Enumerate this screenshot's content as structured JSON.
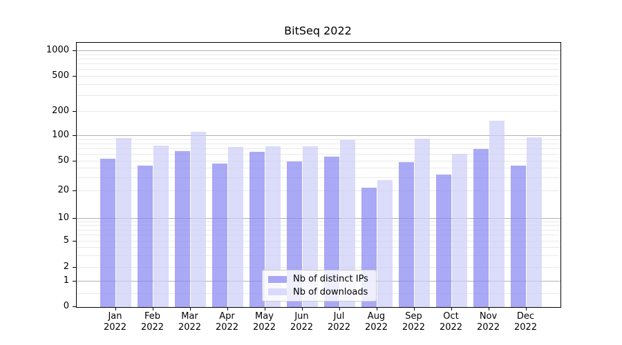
{
  "title": "BitSeq 2022",
  "legend": {
    "items": [
      {
        "label": "Nb of distinct IPs",
        "color": "#8484f2",
        "fill_alpha": 0.7
      },
      {
        "label": "Nb of downloads",
        "color": "#ccccf8",
        "fill_alpha": 0.7
      }
    ]
  },
  "y_axis": {
    "tick_labels": [
      "0",
      "1",
      "2",
      "5",
      "10",
      "20",
      "50",
      "100",
      "200",
      "500",
      "1000"
    ]
  },
  "x_axis": {
    "months": [
      "Jan",
      "Feb",
      "Mar",
      "Apr",
      "May",
      "Jun",
      "Jul",
      "Aug",
      "Sep",
      "Oct",
      "Nov",
      "Dec"
    ],
    "year": "2022"
  },
  "chart_data": {
    "type": "bar",
    "title": "BitSeq 2022",
    "categories": [
      "Jan 2022",
      "Feb 2022",
      "Mar 2022",
      "Apr 2022",
      "May 2022",
      "Jun 2022",
      "Jul 2022",
      "Aug 2022",
      "Sep 2022",
      "Oct 2022",
      "Nov 2022",
      "Dec 2022"
    ],
    "series": [
      {
        "name": "Nb of distinct IPs",
        "color": "#8484f2",
        "fill_alpha": 0.7,
        "values": [
          54,
          44,
          66,
          47,
          65,
          50,
          57,
          22,
          49,
          33,
          70,
          44
        ]
      },
      {
        "name": "Nb of downloads",
        "color": "#ccccf8",
        "fill_alpha": 0.7,
        "values": [
          95,
          77,
          113,
          74,
          75,
          75,
          90,
          28,
          92,
          61,
          155,
          97
        ]
      }
    ],
    "yscale": "symlog",
    "yticks": [
      0,
      1,
      2,
      5,
      10,
      20,
      50,
      100,
      200,
      500,
      1000
    ],
    "ylim": [
      0,
      1300
    ],
    "grid": true,
    "legend_position": "lower center"
  }
}
